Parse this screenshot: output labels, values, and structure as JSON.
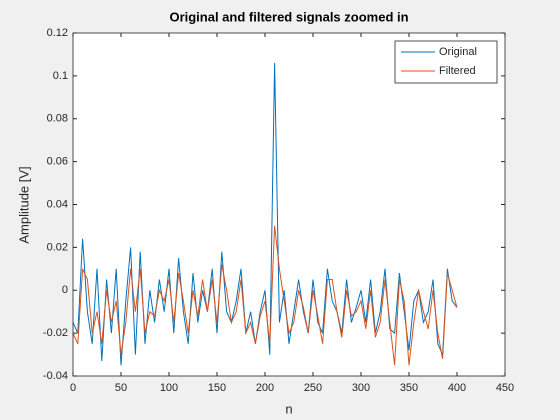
{
  "chart_data": {
    "type": "line",
    "title": "Original and filtered signals zoomed in",
    "xlabel": "n",
    "ylabel": "Amplitude [V]",
    "x": [
      0,
      5,
      10,
      15,
      20,
      25,
      30,
      35,
      40,
      45,
      50,
      55,
      60,
      65,
      70,
      75,
      80,
      85,
      90,
      95,
      100,
      105,
      110,
      115,
      120,
      125,
      130,
      135,
      140,
      145,
      150,
      155,
      160,
      165,
      170,
      175,
      180,
      185,
      190,
      195,
      200,
      205,
      210,
      215,
      220,
      225,
      230,
      235,
      240,
      245,
      250,
      255,
      260,
      265,
      270,
      275,
      280,
      285,
      290,
      295,
      300,
      305,
      310,
      315,
      320,
      325,
      330,
      335,
      340,
      345,
      350,
      355,
      360,
      365,
      370,
      375,
      380,
      385,
      390,
      395,
      400
    ],
    "series": [
      {
        "name": "Original",
        "color": "#0072bd",
        "values": [
          -0.015,
          -0.02,
          0.024,
          -0.01,
          -0.025,
          0.01,
          -0.033,
          0.005,
          -0.02,
          0.01,
          -0.035,
          -0.005,
          0.02,
          -0.03,
          0.018,
          -0.025,
          0.0,
          -0.015,
          0.005,
          -0.01,
          0.01,
          -0.02,
          0.015,
          -0.01,
          -0.025,
          0.008,
          -0.015,
          0.0,
          -0.01,
          0.01,
          -0.02,
          0.018,
          -0.01,
          -0.015,
          -0.005,
          0.01,
          -0.02,
          -0.01,
          -0.025,
          -0.01,
          0.0,
          -0.03,
          0.106,
          -0.015,
          0.0,
          -0.025,
          -0.01,
          0.005,
          -0.01,
          -0.02,
          0.005,
          -0.015,
          -0.02,
          0.01,
          -0.005,
          -0.01,
          -0.02,
          0.005,
          -0.015,
          -0.008,
          0.0,
          -0.015,
          0.005,
          -0.02,
          -0.01,
          0.01,
          -0.018,
          -0.02,
          0.008,
          -0.01,
          -0.028,
          -0.005,
          0.0,
          -0.015,
          -0.01,
          0.005,
          -0.025,
          -0.03,
          0.01,
          -0.005,
          -0.008
        ]
      },
      {
        "name": "Filtered",
        "color": "#d95319",
        "values": [
          -0.02,
          -0.025,
          0.01,
          0.005,
          -0.02,
          -0.01,
          -0.025,
          0.0,
          -0.015,
          -0.005,
          -0.03,
          -0.015,
          0.01,
          -0.01,
          0.01,
          -0.02,
          -0.01,
          -0.012,
          0.0,
          -0.005,
          0.005,
          -0.015,
          0.008,
          -0.005,
          -0.02,
          0.0,
          -0.012,
          0.005,
          -0.01,
          0.005,
          -0.015,
          0.012,
          0.0,
          -0.015,
          -0.01,
          0.005,
          -0.02,
          -0.015,
          -0.025,
          -0.012,
          -0.005,
          -0.025,
          0.03,
          0.01,
          -0.005,
          -0.02,
          -0.015,
          0.0,
          -0.008,
          -0.02,
          0.0,
          -0.012,
          -0.025,
          0.005,
          0.005,
          -0.01,
          -0.022,
          0.0,
          -0.012,
          -0.01,
          -0.005,
          -0.018,
          0.0,
          -0.022,
          -0.015,
          0.005,
          -0.015,
          -0.035,
          0.005,
          -0.005,
          -0.035,
          -0.015,
          0.0,
          -0.01,
          -0.018,
          0.0,
          -0.02,
          -0.032,
          0.008,
          0.0,
          -0.008
        ]
      }
    ],
    "xlim": [
      0,
      450
    ],
    "xticks": [
      0,
      50,
      100,
      150,
      200,
      250,
      300,
      350,
      400,
      450
    ],
    "ylim": [
      -0.04,
      0.12
    ],
    "yticks": [
      -0.04,
      -0.02,
      0,
      0.02,
      0.04,
      0.06,
      0.08,
      0.1,
      0.12
    ],
    "legend": "northeast"
  }
}
